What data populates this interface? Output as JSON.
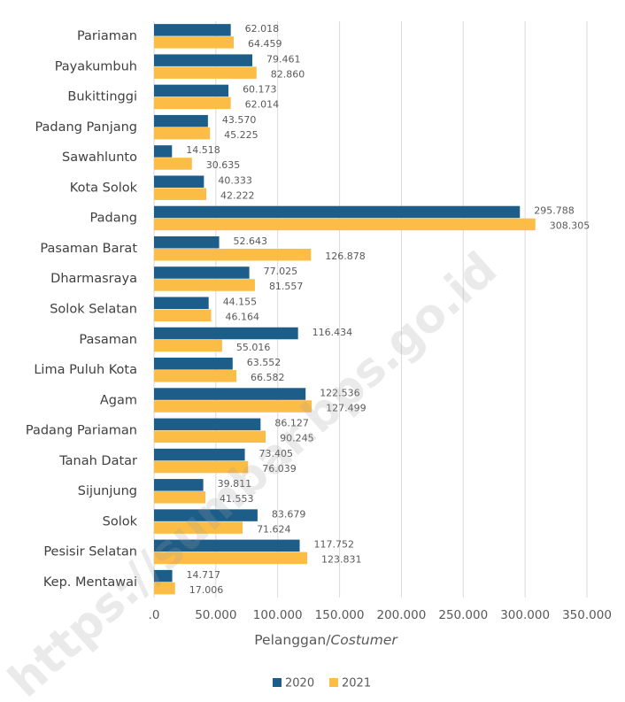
{
  "chart_data": {
    "type": "barh",
    "categories": [
      "Pariaman",
      "Payakumbuh",
      "Bukittinggi",
      "Padang Panjang",
      "Sawahlunto",
      "Kota Solok",
      "Padang",
      "Pasaman Barat",
      "Dharmasraya",
      "Solok Selatan",
      "Pasaman",
      "Lima Puluh Kota",
      "Agam",
      "Padang Pariaman",
      "Tanah Datar",
      "Sijunjung",
      "Solok",
      "Pesisir Selatan",
      "Kep. Mentawai"
    ],
    "series": [
      {
        "name": "2020",
        "color": "#1c5d8a",
        "values": [
          62018,
          79461,
          60173,
          43570,
          14518,
          40333,
          295788,
          52643,
          77025,
          44155,
          116434,
          63552,
          122536,
          86127,
          73405,
          39811,
          83679,
          117752,
          14717
        ],
        "value_labels": [
          "62.018",
          "79.461",
          "60.173",
          "43.570",
          "14.518",
          "40.333",
          "295.788",
          "52.643",
          "77.025",
          "44.155",
          "116.434",
          "63.552",
          "122.536",
          "86.127",
          "73.405",
          "39.811",
          "83.679",
          "117.752",
          "14.717"
        ]
      },
      {
        "name": "2021",
        "color": "#fbbd45",
        "values": [
          64459,
          82860,
          62014,
          45225,
          30635,
          42222,
          308305,
          126878,
          81557,
          46164,
          55016,
          66582,
          127499,
          90245,
          76039,
          41553,
          71624,
          123831,
          17006
        ],
        "value_labels": [
          "64.459",
          "82.860",
          "62.014",
          "45.225",
          "30.635",
          "42.222",
          "308.305",
          "126.878",
          "81.557",
          "46.164",
          "55.016",
          "66.582",
          "127.499",
          "90.245",
          "76.039",
          "41.553",
          "71.624",
          "123.831",
          "17.006"
        ]
      }
    ],
    "xlim": [
      0,
      350000
    ],
    "xticks": [
      {
        "value": 0,
        "label": ".0"
      },
      {
        "value": 50000,
        "label": "50.000"
      },
      {
        "value": 100000,
        "label": "100.000"
      },
      {
        "value": 150000,
        "label": "150.000"
      },
      {
        "value": 200000,
        "label": "200.000"
      },
      {
        "value": 250000,
        "label": "250.000"
      },
      {
        "value": 300000,
        "label": "300.000"
      },
      {
        "value": 350000,
        "label": "350.000"
      }
    ],
    "grid": true,
    "xlabel": "Pelanggan/",
    "xlabel_italic": "Costumer",
    "legend": "bottom",
    "watermark": "https://sumbar.bps.go.id"
  }
}
